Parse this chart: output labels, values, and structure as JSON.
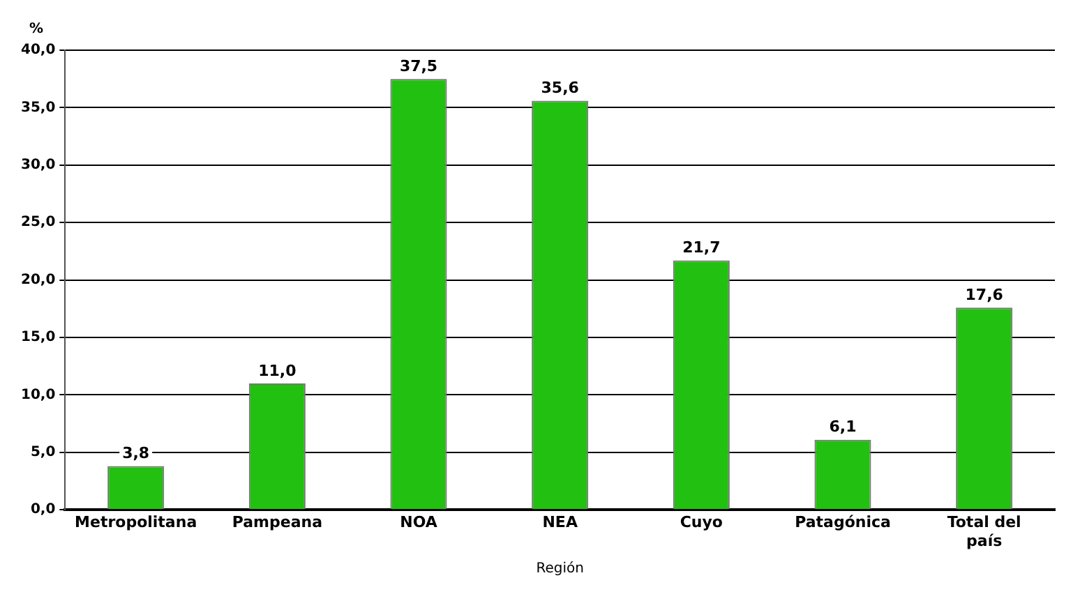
{
  "chart_data": {
    "type": "bar",
    "xlabel": "Región",
    "ylabel": "%",
    "categories": [
      "Metropolitana",
      "Pampeana",
      "NOA",
      "NEA",
      "Cuyo",
      "Patagónica",
      "Total del país"
    ],
    "values": [
      3.8,
      11.0,
      37.5,
      35.6,
      21.7,
      6.1,
      17.6
    ],
    "value_labels": [
      "3,8",
      "11,0",
      "37,5",
      "35,6",
      "21,7",
      "6,1",
      "17,6"
    ],
    "color": "#22c010",
    "ylim": [
      0,
      40
    ],
    "yticks": [
      {
        "value": 0,
        "label": "0,0"
      },
      {
        "value": 5,
        "label": "5,0"
      },
      {
        "value": 10,
        "label": "10,0"
      },
      {
        "value": 15,
        "label": "15,0"
      },
      {
        "value": 20,
        "label": "20,0"
      },
      {
        "value": 25,
        "label": "25,0"
      },
      {
        "value": 30,
        "label": "30,0"
      },
      {
        "value": 35,
        "label": "35,0"
      },
      {
        "value": 40,
        "label": "40,0"
      }
    ],
    "grid": "y",
    "legend": false
  }
}
